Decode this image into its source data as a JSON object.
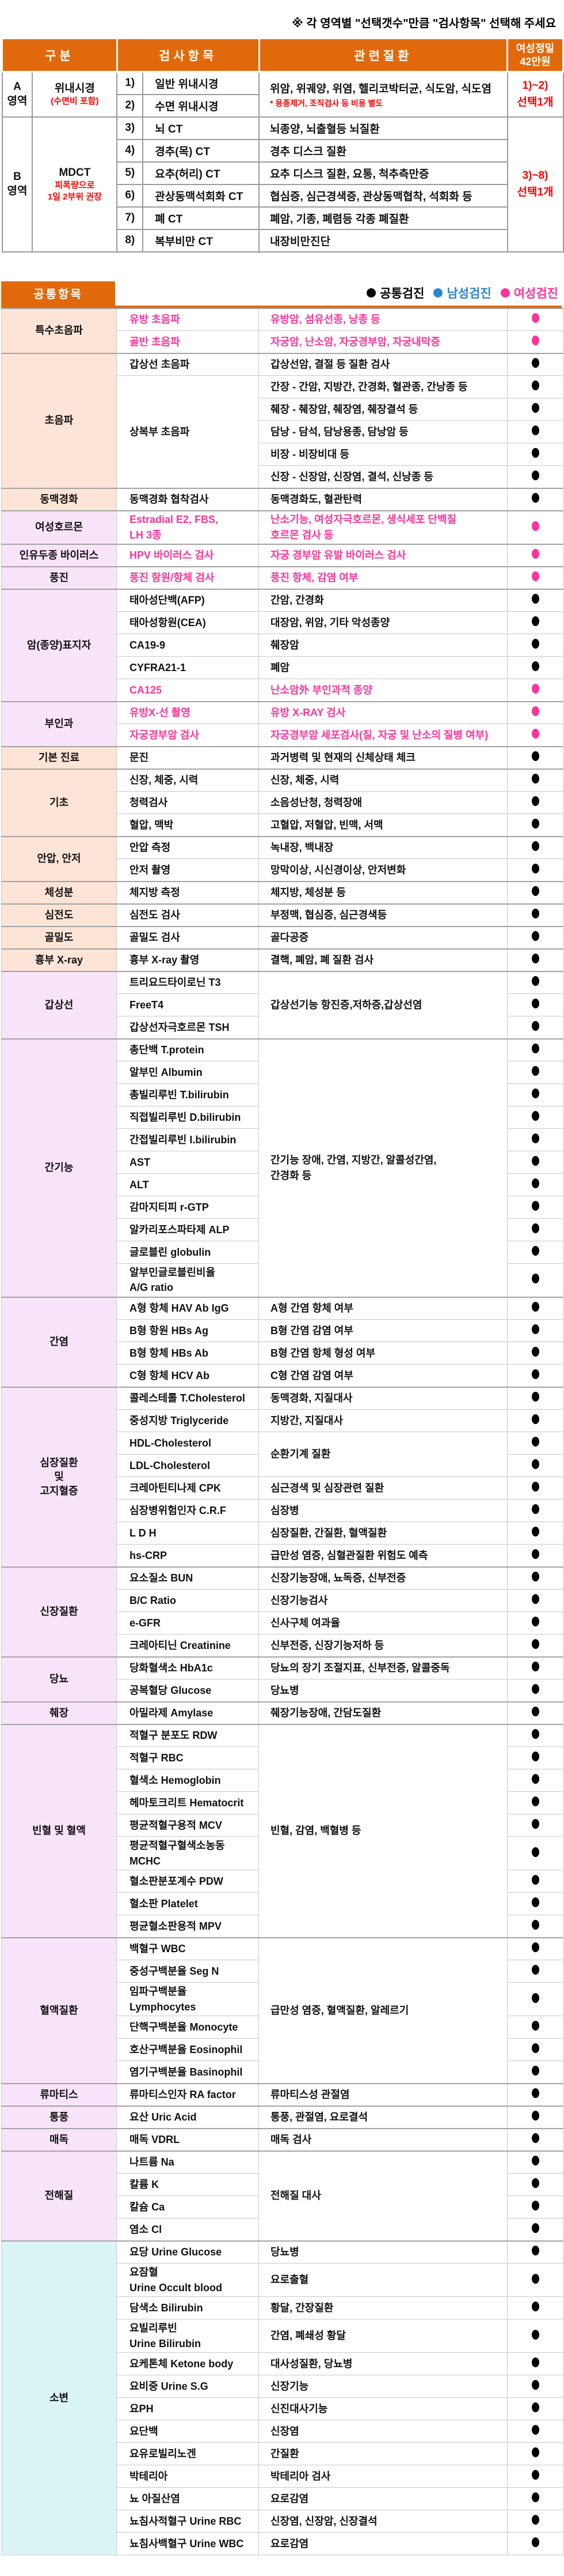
{
  "note": "※ 각 영역별 \"선택갯수\"만큼 \"검사항목\" 선택해 주세요",
  "colors": {
    "accent_orange": "#e2690b",
    "common": "#000000",
    "male": "#2e86c8",
    "female": "#ff3399",
    "red": "#ff0000",
    "zoneA_bg": "#fdeef6",
    "zoneB_bg": "#fdfde1",
    "peach_bg": "#fce4d6",
    "violet_bg": "#f8e4f8",
    "cyan_bg": "#dbf5f7"
  },
  "top_table": {
    "headers": [
      "구분",
      "검사항목",
      "관련질환",
      "여성정밀\n42만원"
    ],
    "sections": [
      {
        "zone": "A\n영역",
        "name": "위내시경",
        "name_sub": "(수면비 포함)",
        "items": [
          {
            "no": "1)",
            "label": "일반 위내시경"
          },
          {
            "no": "2)",
            "label": "수면 위내시경"
          }
        ],
        "disease": "위암, 위궤양, 위염, 헬리코박터균, 식도암, 식도염",
        "disease_note": "* 용종제거, 조직검사 등 비용 별도",
        "select": "1)~2)\n선택1개"
      },
      {
        "zone": "B\n영역",
        "name": "MDCT",
        "name_sub": "피폭량으로\n1일 2부위 권장",
        "items": [
          {
            "no": "3)",
            "label": "뇌 CT",
            "disease": "뇌종양, 뇌출혈등 뇌질환"
          },
          {
            "no": "4)",
            "label": "경추(목) CT",
            "disease": "경추 디스크 질환"
          },
          {
            "no": "5)",
            "label": "요추(허리) CT",
            "disease": "요추 디스크 질환, 요통, 척추측만증"
          },
          {
            "no": "6)",
            "label": "관상동맥석회화 CT",
            "disease": "협심증, 심근경색증, 관상동맥협착, 석회화 등"
          },
          {
            "no": "7)",
            "label": "폐 CT",
            "disease": "폐암, 기종, 폐렴등 각종 폐질환"
          },
          {
            "no": "8)",
            "label": "복부비만 CT",
            "disease": "내장비만진단"
          }
        ],
        "select": "3)~8)\n선택1개"
      }
    ]
  },
  "common_title": "공통항목",
  "legend": [
    {
      "label": "공통검진",
      "color_key": "common"
    },
    {
      "label": "남성검진",
      "color_key": "male"
    },
    {
      "label": "여성검진",
      "color_key": "female"
    }
  ],
  "common_table": {
    "groups": [
      {
        "cat": "특수초음파",
        "bg": "peach",
        "rows": [
          {
            "item": "유방 초음파",
            "desc": "유방암, 섬유선종, 낭종 등",
            "dot": "F",
            "pink": true
          },
          {
            "item": "골반 초음파",
            "desc": "자궁암, 난소암, 자궁경부암, 자궁내막증",
            "dot": "F",
            "pink": true
          }
        ]
      },
      {
        "cat": "초음파",
        "bg": "peach",
        "rows": [
          {
            "item": "갑상선 초음파",
            "desc": "갑상선암, 결절 등 질환 검사",
            "dot": "C"
          },
          {
            "item": "상복부 초음파",
            "itemSpan": 5,
            "desc": "간장 - 간암, 지방간, 간경화, 혈관종, 간낭종 등",
            "dot": "C"
          },
          {
            "desc": "췌장 - 췌장암, 췌장염, 췌장결석 등",
            "dot": "C"
          },
          {
            "desc": "담낭 - 담석, 담낭용종, 담낭암 등",
            "dot": "C"
          },
          {
            "desc": "비장 - 비장비대 등",
            "dot": "C"
          },
          {
            "desc": "신장 - 신장암, 신장염, 결석, 신낭종 등",
            "dot": "C"
          }
        ]
      },
      {
        "cat": "동맥경화",
        "bg": "peach",
        "rows": [
          {
            "item": "동맥경화 협착검사",
            "desc": "동맥경화도, 혈관탄력",
            "dot": "C"
          }
        ]
      },
      {
        "cat": "여성호르몬",
        "bg": "violet",
        "rows": [
          {
            "item": "Estradial E2, FBS,\nLH 3종",
            "desc": "난소기능, 여성자극호르몬, 생식세포 단백질\n호르몬 검사 등",
            "dot": "F",
            "pink": true,
            "h": 58
          }
        ]
      },
      {
        "cat": "인유두종 바이러스",
        "bg": "violet",
        "rows": [
          {
            "item": "HPV 바이러스 검사",
            "desc": "자궁 경부암 유발 바이러스 검사",
            "dot": "F",
            "pink": true
          }
        ]
      },
      {
        "cat": "풍진",
        "bg": "violet",
        "rows": [
          {
            "item": "풍진 항원/항체 검사",
            "desc": "풍진 항체, 감염 여부",
            "dot": "F",
            "pink": true
          }
        ]
      },
      {
        "cat": "암(종양)표지자",
        "bg": "violet",
        "rows": [
          {
            "item": "태아성단백(AFP)",
            "desc": "간암, 간경화",
            "dot": "C"
          },
          {
            "item": "태아성항원(CEA)",
            "desc": "대장암, 위암, 기타 악성종양",
            "dot": "C"
          },
          {
            "item": "CA19-9",
            "desc": "췌장암",
            "dot": "C"
          },
          {
            "item": "CYFRA21-1",
            "desc": "폐암",
            "dot": "C"
          },
          {
            "item": "CA125",
            "desc": "난소암外 부인과적 종양",
            "dot": "F",
            "pink": true
          }
        ]
      },
      {
        "cat": "부인과",
        "bg": "violet",
        "rows": [
          {
            "item": "유방X-선 촬영",
            "desc": "유방 X-RAY 검사",
            "dot": "F",
            "pink": true
          },
          {
            "item": "자궁경부암 검사",
            "desc": "자궁경부암 세포검사(질, 자궁 및 난소의 질병 여부)",
            "dot": "F",
            "pink": true
          }
        ]
      },
      {
        "cat": "기본 진료",
        "bg": "peach",
        "rows": [
          {
            "item": "문진",
            "desc": "과거병력 및 현재의 신체상태 체크",
            "dot": "C"
          }
        ]
      },
      {
        "cat": "기초",
        "bg": "peach",
        "rows": [
          {
            "item": "신장, 체중, 시력",
            "desc": "신장, 체중, 시력",
            "dot": "C"
          },
          {
            "item": "청력검사",
            "desc": "소음성난청, 청력장애",
            "dot": "C"
          },
          {
            "item": "혈압, 맥박",
            "desc": "고혈압, 저혈압, 빈맥, 서맥",
            "dot": "C"
          }
        ]
      },
      {
        "cat": "안압, 안저",
        "bg": "peach",
        "rows": [
          {
            "item": "안압 측정",
            "desc": "녹내장, 백내장",
            "dot": "C"
          },
          {
            "item": "안저 촬영",
            "desc": "망막이상, 시신경이상, 안저변화",
            "dot": "C"
          }
        ]
      },
      {
        "cat": "체성분",
        "bg": "peach",
        "rows": [
          {
            "item": "체지방 측정",
            "desc": "체지방, 체성분 등",
            "dot": "C"
          }
        ]
      },
      {
        "cat": "심전도",
        "bg": "peach",
        "rows": [
          {
            "item": "심전도 검사",
            "desc": "부정맥, 협심증, 심근경색등",
            "dot": "C"
          }
        ]
      },
      {
        "cat": "골밀도",
        "bg": "peach",
        "rows": [
          {
            "item": "골밀도 검사",
            "desc": "골다공증",
            "dot": "C"
          }
        ]
      },
      {
        "cat": "흉부 X-ray",
        "bg": "peach",
        "rows": [
          {
            "item": "흉부 X-ray 촬영",
            "desc": "결핵, 폐암, 폐 질환 검사",
            "dot": "C"
          }
        ]
      },
      {
        "cat": "갑상선",
        "bg": "violet",
        "rows": [
          {
            "item": "트리요드타이로닌 T3",
            "desc": "갑상선기능 항진증,저하증,갑상선염",
            "descSpan": 3,
            "dot": "C"
          },
          {
            "item": "FreeT4",
            "dot": "C"
          },
          {
            "item": "갑상선자극호르몬 TSH",
            "dot": "C"
          }
        ]
      },
      {
        "cat": "간기능",
        "bg": "violet",
        "rows": [
          {
            "item": "총단백 T.protein",
            "desc": "간기능 장애, 간염, 지방간, 알콜성간염,\n간경화 등",
            "descSpan": 11,
            "dot": "C"
          },
          {
            "item": "알부민 Albumin",
            "dot": "C"
          },
          {
            "item": "총빌리루빈 T.bilirubin",
            "dot": "C"
          },
          {
            "item": "직접빌리루빈 D.bilirubin",
            "dot": "C"
          },
          {
            "item": "간접빌리루빈 I.bilirubin",
            "dot": "C"
          },
          {
            "item": "AST",
            "dot": "C"
          },
          {
            "item": "ALT",
            "dot": "C"
          },
          {
            "item": "감마지티피 r-GTP",
            "dot": "C"
          },
          {
            "item": "알카리포스파타제 ALP",
            "dot": "C"
          },
          {
            "item": "글로블린 globulin",
            "dot": "C"
          },
          {
            "item": "알부민글로블린비율\nA/G ratio",
            "dot": "C",
            "h": 58
          }
        ]
      },
      {
        "cat": "간염",
        "bg": "violet",
        "rows": [
          {
            "item": "A형 항체 HAV Ab IgG",
            "desc": "A형 간염 항체 여부",
            "dot": "C"
          },
          {
            "item": "B형 항원 HBs Ag",
            "desc": "B형 간염 감염 여부",
            "dot": "C"
          },
          {
            "item": "B형 항체 HBs Ab",
            "desc": "B형 간염 항체 형성 여부",
            "dot": "C"
          },
          {
            "item": "C형 항체 HCV Ab",
            "desc": "C형 간염 감염 여부",
            "dot": "C"
          }
        ]
      },
      {
        "cat": "심장질환\n및\n고지혈증",
        "bg": "violet",
        "rows": [
          {
            "item": "콜레스테롤 T.Cholesterol",
            "desc": "동맥경화, 지질대사",
            "dot": "C"
          },
          {
            "item": "중성지방 Triglyceride",
            "desc": "지방간, 지질대사",
            "dot": "C"
          },
          {
            "item": "HDL-Cholesterol",
            "desc": "순환기계 질환",
            "descSpan": 2,
            "dot": "C"
          },
          {
            "item": "LDL-Cholesterol",
            "dot": "C"
          },
          {
            "item": "크레아틴티나제 CPK",
            "desc": "심근경색 및 심장관련 질환",
            "dot": "C"
          },
          {
            "item": "심장병위험인자 C.R.F",
            "desc": "심장병",
            "dot": "C"
          },
          {
            "item": "L D H",
            "desc": "심장질환, 간질환, 혈액질환",
            "dot": "C"
          },
          {
            "item": "hs-CRP",
            "desc": "급만성 염증, 심혈관질환 위험도 예측",
            "dot": "C"
          }
        ]
      },
      {
        "cat": "신장질환",
        "bg": "violet",
        "rows": [
          {
            "item": "요소질소 BUN",
            "desc": "신장기능장애, 뇨독증, 신부전증",
            "dot": "C"
          },
          {
            "item": "B/C Ratio",
            "desc": "신장기능검사",
            "dot": "C"
          },
          {
            "item": "e-GFR",
            "desc": "신사구체 여과율",
            "dot": "C"
          },
          {
            "item": "크레아티닌 Creatinine",
            "desc": "신부전증, 신장기능저하 등",
            "dot": "C"
          }
        ]
      },
      {
        "cat": "당뇨",
        "bg": "violet",
        "rows": [
          {
            "item": "당화혈색소 HbA1c",
            "desc": "당뇨의 장기 조절지표, 신부전증, 알콜중독",
            "dot": "C"
          },
          {
            "item": "공복혈당 Glucose",
            "desc": "당뇨병",
            "dot": "C"
          }
        ]
      },
      {
        "cat": "췌장",
        "bg": "violet",
        "rows": [
          {
            "item": "아밀라제 Amylase",
            "desc": "췌장기능장애, 간담도질환",
            "dot": "C"
          }
        ]
      },
      {
        "cat": "빈혈 및 혈액",
        "bg": "violet",
        "rows": [
          {
            "item": "적혈구 분포도 RDW",
            "desc": "빈혈, 감염, 백혈병 등",
            "descSpan": 9,
            "dot": "C"
          },
          {
            "item": "적혈구 RBC",
            "dot": "C"
          },
          {
            "item": "혈색소 Hemoglobin",
            "dot": "C"
          },
          {
            "item": "헤마토크리트 Hematocrit",
            "dot": "C"
          },
          {
            "item": "평균적혈구용적 MCV",
            "dot": "C"
          },
          {
            "item": "평균적혈구혈색소농동\nMCHC",
            "dot": "C",
            "h": 58
          },
          {
            "item": "혈소판분포계수 PDW",
            "dot": "C"
          },
          {
            "item": "혈소판 Platelet",
            "dot": "C"
          },
          {
            "item": "평균혈소판용적 MPV",
            "dot": "C"
          }
        ]
      },
      {
        "cat": "혈액질환",
        "bg": "violet",
        "rows": [
          {
            "item": "백혈구 WBC",
            "desc": "급만성 염증, 혈액질환, 알레르기",
            "descSpan": 6,
            "dot": "C"
          },
          {
            "item": "중성구백분율 Seg N",
            "dot": "C"
          },
          {
            "item": "임파구백분율\nLymphocytes",
            "dot": "C",
            "h": 58
          },
          {
            "item": "단핵구백분율 Monocyte",
            "dot": "C"
          },
          {
            "item": "호산구백분율 Eosinophil",
            "dot": "C"
          },
          {
            "item": "염기구백분율 Basinophil",
            "dot": "C"
          }
        ]
      },
      {
        "cat": "류마티스",
        "bg": "violet",
        "rows": [
          {
            "item": "류마티스인자 RA factor",
            "desc": "류마티스성 관절염",
            "dot": "C"
          }
        ]
      },
      {
        "cat": "통풍",
        "bg": "violet",
        "rows": [
          {
            "item": "요산 Uric Acid",
            "desc": "통풍, 관절염, 요로결석",
            "dot": "C"
          }
        ]
      },
      {
        "cat": "매독",
        "bg": "violet",
        "rows": [
          {
            "item": "매독 VDRL",
            "desc": "매독 검사",
            "dot": "C"
          }
        ]
      },
      {
        "cat": "전해질",
        "bg": "violet",
        "rows": [
          {
            "item": "나트륨 Na",
            "desc": "전해질 대사",
            "descSpan": 4,
            "dot": "C"
          },
          {
            "item": "칼륨 K",
            "dot": "C"
          },
          {
            "item": "칼슘 Ca",
            "dot": "C"
          },
          {
            "item": "염소 Cl",
            "dot": "C"
          }
        ]
      },
      {
        "cat": "소변",
        "bg": "cyan",
        "rows": [
          {
            "item": "요당 Urine Glucose",
            "desc": "당뇨병",
            "dot": "C"
          },
          {
            "item": "요잠혈\nUrine Occult blood",
            "desc": "요로출혈",
            "dot": "C",
            "h": 58
          },
          {
            "item": "담색소 Bilirubin",
            "desc": "황달, 간장질환",
            "dot": "C"
          },
          {
            "item": "요빌리루빈\nUrine Bilirubin",
            "desc": "간염, 폐쇄성 황달",
            "dot": "C",
            "h": 58
          },
          {
            "item": "요케톤체 Ketone body",
            "desc": "대사성질환, 당뇨병",
            "dot": "C"
          },
          {
            "item": "요비중 Urine S.G",
            "desc": "신장기능",
            "dot": "C"
          },
          {
            "item": "요PH",
            "desc": "신진대사기능",
            "dot": "C"
          },
          {
            "item": "요단백",
            "desc": "신장염",
            "dot": "C"
          },
          {
            "item": "요유로빌리노겐",
            "desc": "간질환",
            "dot": "C"
          },
          {
            "item": "박테리아",
            "desc": "박테리아 검사",
            "dot": "C"
          },
          {
            "item": "뇨 아질산염",
            "desc": "요로감염",
            "dot": "C"
          },
          {
            "item": "뇨침사적혈구 Urine RBC",
            "desc": "신장염, 신장암, 신장결석",
            "dot": "C"
          },
          {
            "item": "뇨침사백혈구 Urine WBC",
            "desc": "요로감염",
            "dot": "C"
          }
        ]
      }
    ]
  }
}
